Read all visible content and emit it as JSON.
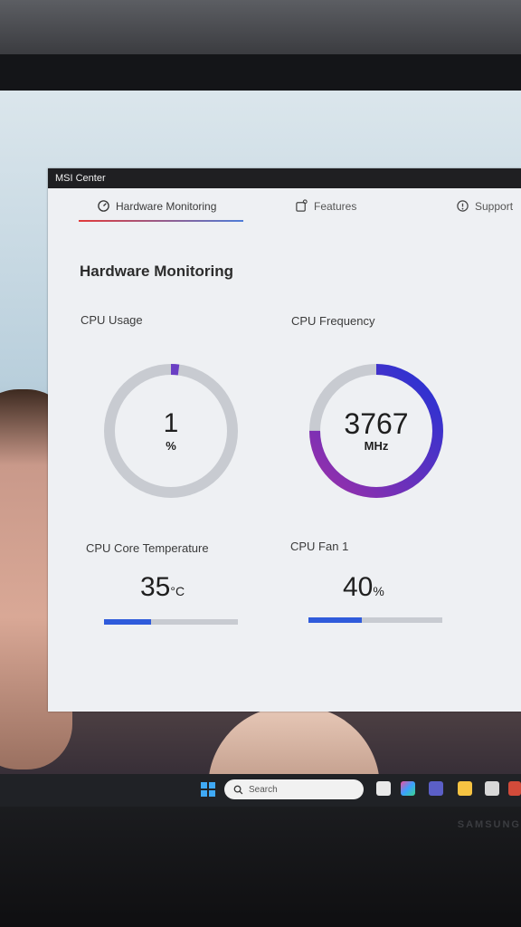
{
  "window": {
    "title": "MSI Center"
  },
  "tabs": [
    {
      "label": "Hardware Monitoring",
      "icon": "gauge-icon",
      "active": true
    },
    {
      "label": "Features",
      "icon": "features-icon",
      "active": false
    },
    {
      "label": "Support",
      "icon": "support-icon",
      "active": false
    }
  ],
  "page": {
    "heading": "Hardware Monitoring"
  },
  "cpu_usage": {
    "label": "CPU Usage",
    "value": "1",
    "unit": "%",
    "fraction": 0.01
  },
  "cpu_frequency": {
    "label": "CPU Frequency",
    "value": "3767",
    "unit": "MHz",
    "fraction": 0.75
  },
  "cpu_temp": {
    "label": "CPU Core Temperature",
    "value": "35",
    "unit": "°C",
    "fraction": 0.35
  },
  "cpu_fan": {
    "label": "CPU Fan 1",
    "value": "40",
    "unit": "%",
    "fraction": 0.4
  },
  "taskbar": {
    "search_placeholder": "Search"
  },
  "monitor": {
    "brand": "SAMSUNG"
  },
  "colors": {
    "accent_blue": "#2f5bdb",
    "ring_track": "#c8cbd1",
    "usage_purple": "#6a3fc4",
    "freq_start": "#9c2fa8",
    "freq_end": "#2233d6"
  }
}
